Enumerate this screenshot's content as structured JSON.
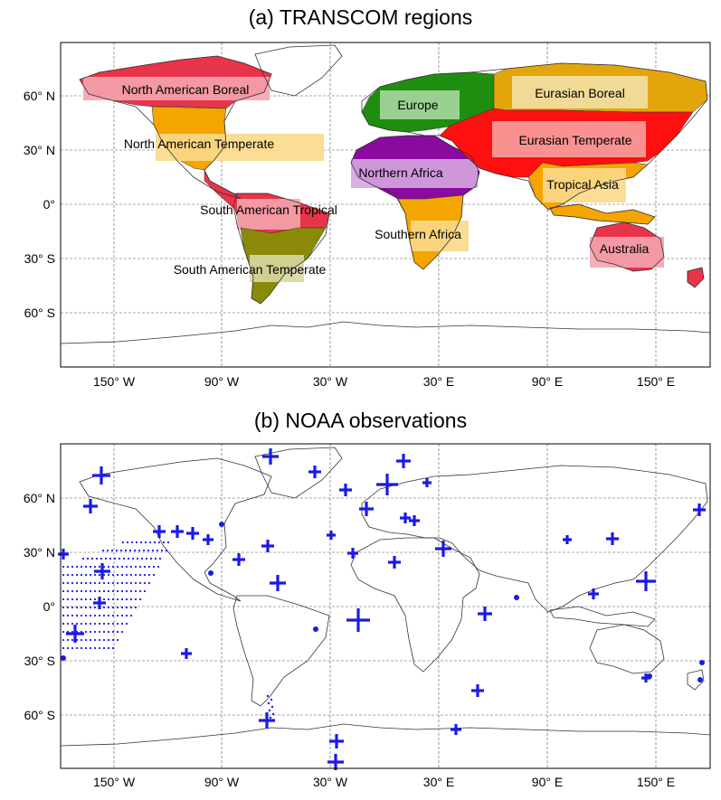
{
  "panel_a": {
    "title": "(a) TRANSCOM regions",
    "regions": [
      {
        "label": "North American Boreal",
        "color": "#e8344a",
        "band": "#f4a4ae"
      },
      {
        "label": "North American Temperate",
        "color": "#f5a500",
        "band": "#fbd98a"
      },
      {
        "label": "South American Tropical",
        "color": "#e8344a",
        "band": "#f4a4ae"
      },
      {
        "label": "South American Temperate",
        "color": "#8b8a08",
        "band": "#d9d6a2"
      },
      {
        "label": "Europe",
        "color": "#1f8e10",
        "band": "#a9d89f"
      },
      {
        "label": "Northern Africa",
        "color": "#8a0aa0",
        "band": "#d6a6e0"
      },
      {
        "label": "Southern Africa",
        "color": "#f5a500",
        "band": "#fbd98a"
      },
      {
        "label": "Eurasian Boreal",
        "color": "#e2a60c",
        "band": "#f3e0a4"
      },
      {
        "label": "Eurasian Temperate",
        "color": "#ff1010",
        "band": "#f8a0a0"
      },
      {
        "label": "Tropical Asia",
        "color": "#f5a500",
        "band": "#fbd98a"
      },
      {
        "label": "Australia",
        "color": "#e8344a",
        "band": "#f4a4ae"
      }
    ]
  },
  "panel_b": {
    "title": "(b) NOAA observations",
    "marker_color": "#1a1ae6"
  },
  "axes": {
    "x_ticks": [
      "150° W",
      "90° W",
      "30° W",
      "30° E",
      "90° E",
      "150° E"
    ],
    "y_ticks": [
      "60° N",
      "30° N",
      "0°",
      "30° S",
      "60° S"
    ]
  }
}
